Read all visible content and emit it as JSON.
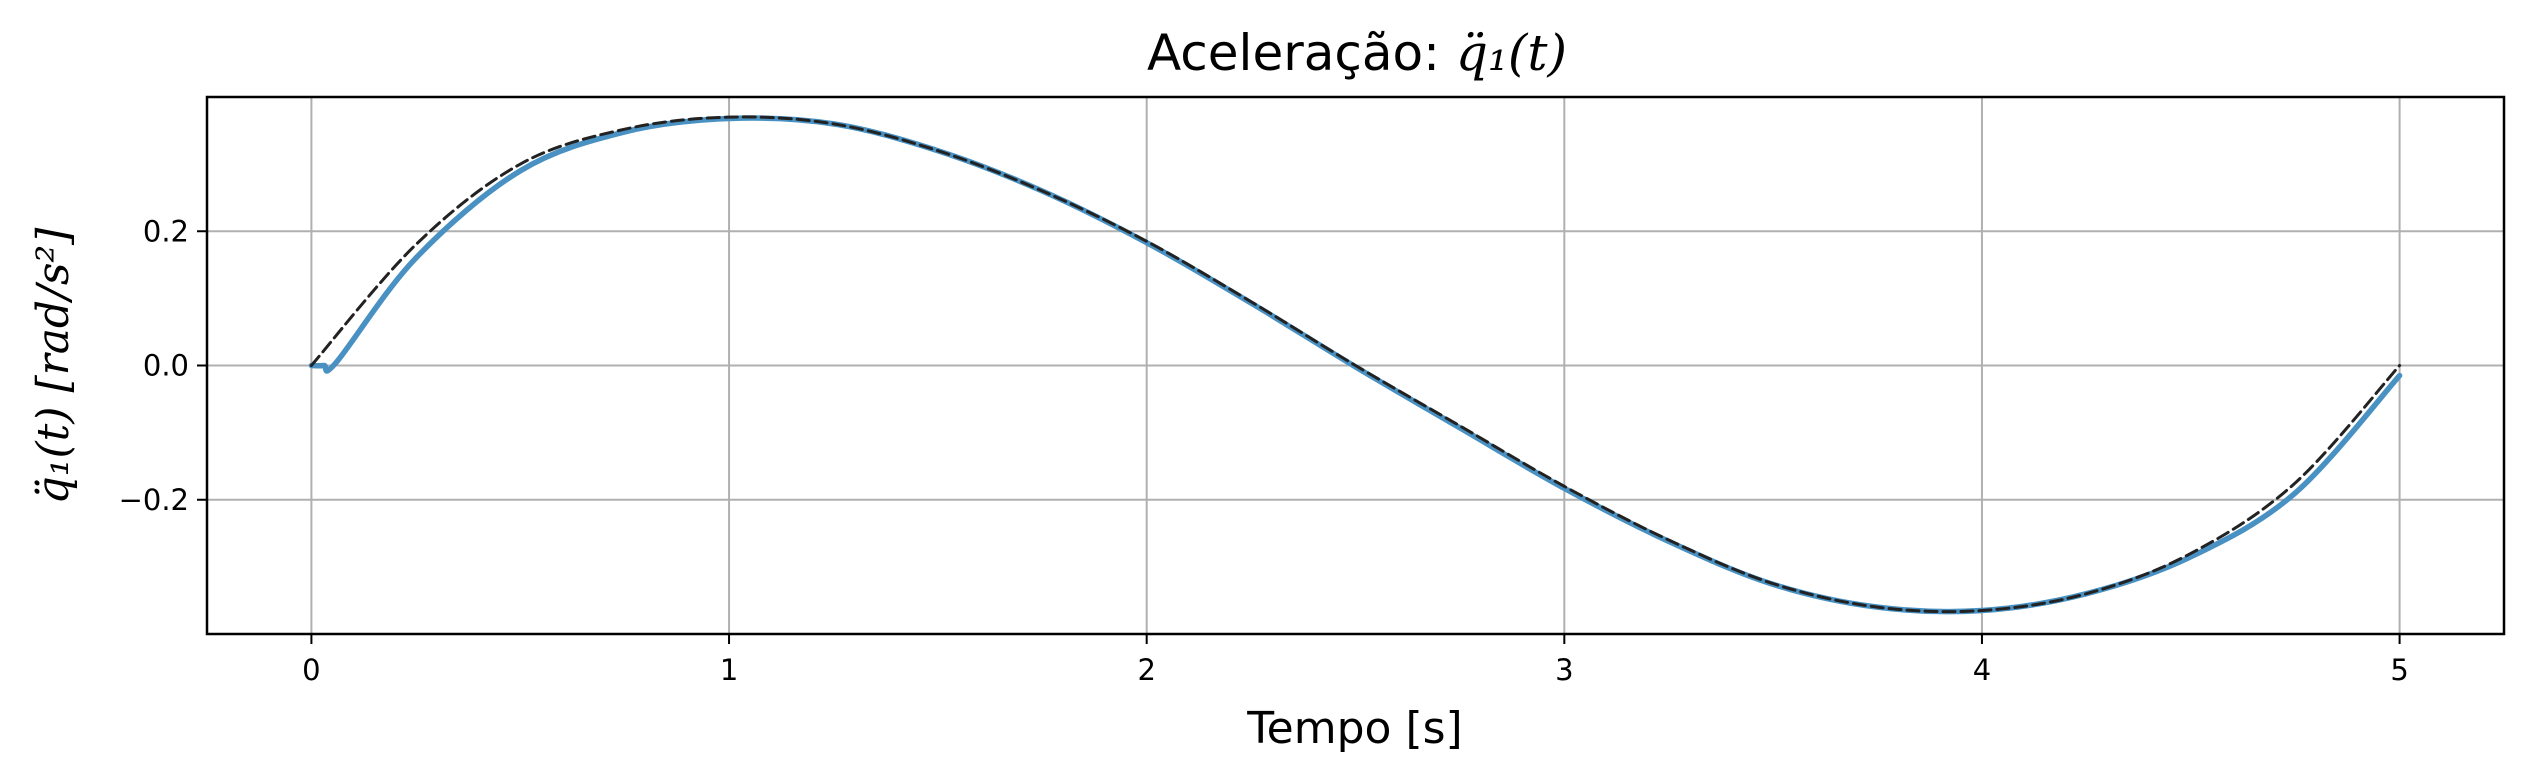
{
  "chart_data": {
    "type": "line",
    "title_prefix": "Aceleração: ",
    "title_math": "q̈₁(t)",
    "xlabel": "Tempo [s]",
    "ylabel_math": "q̈₁(t) [rad/s²]",
    "xlim": [
      -0.25,
      5.25
    ],
    "ylim": [
      -0.4,
      0.4
    ],
    "xticks": [
      0,
      1,
      2,
      3,
      4,
      5
    ],
    "xtick_labels": [
      "0",
      "1",
      "2",
      "3",
      "4",
      "5"
    ],
    "yticks": [
      -0.2,
      0.0,
      0.2
    ],
    "ytick_labels": [
      "−0.2",
      "0.0",
      "0.2"
    ],
    "grid": true,
    "series": [
      {
        "style": "dashed",
        "color": "#222222",
        "x": [
          0,
          0.25,
          0.5,
          0.75,
          1.0,
          1.25,
          1.5,
          1.75,
          2.0,
          2.25,
          2.5,
          2.75,
          3.0,
          3.25,
          3.5,
          3.75,
          4.0,
          4.25,
          4.5,
          4.75,
          5.0
        ],
        "y": [
          0.0,
          0.18,
          0.3,
          0.352,
          0.37,
          0.36,
          0.32,
          0.26,
          0.185,
          0.095,
          0.0,
          -0.09,
          -0.18,
          -0.26,
          -0.325,
          -0.36,
          -0.365,
          -0.34,
          -0.28,
          -0.175,
          0.0
        ]
      },
      {
        "style": "solid",
        "color": "#4891c2",
        "x": [
          0,
          0.03,
          0.06,
          0.25,
          0.5,
          0.75,
          1.0,
          1.25,
          1.5,
          1.75,
          2.0,
          2.25,
          2.5,
          2.75,
          3.0,
          3.25,
          3.5,
          3.75,
          4.0,
          4.25,
          4.5,
          4.75,
          5.0
        ],
        "y": [
          0.0,
          0.0,
          0.005,
          0.16,
          0.29,
          0.348,
          0.368,
          0.36,
          0.32,
          0.26,
          0.183,
          0.093,
          -0.002,
          -0.093,
          -0.183,
          -0.262,
          -0.326,
          -0.36,
          -0.365,
          -0.34,
          -0.285,
          -0.19,
          -0.015
        ]
      }
    ]
  }
}
